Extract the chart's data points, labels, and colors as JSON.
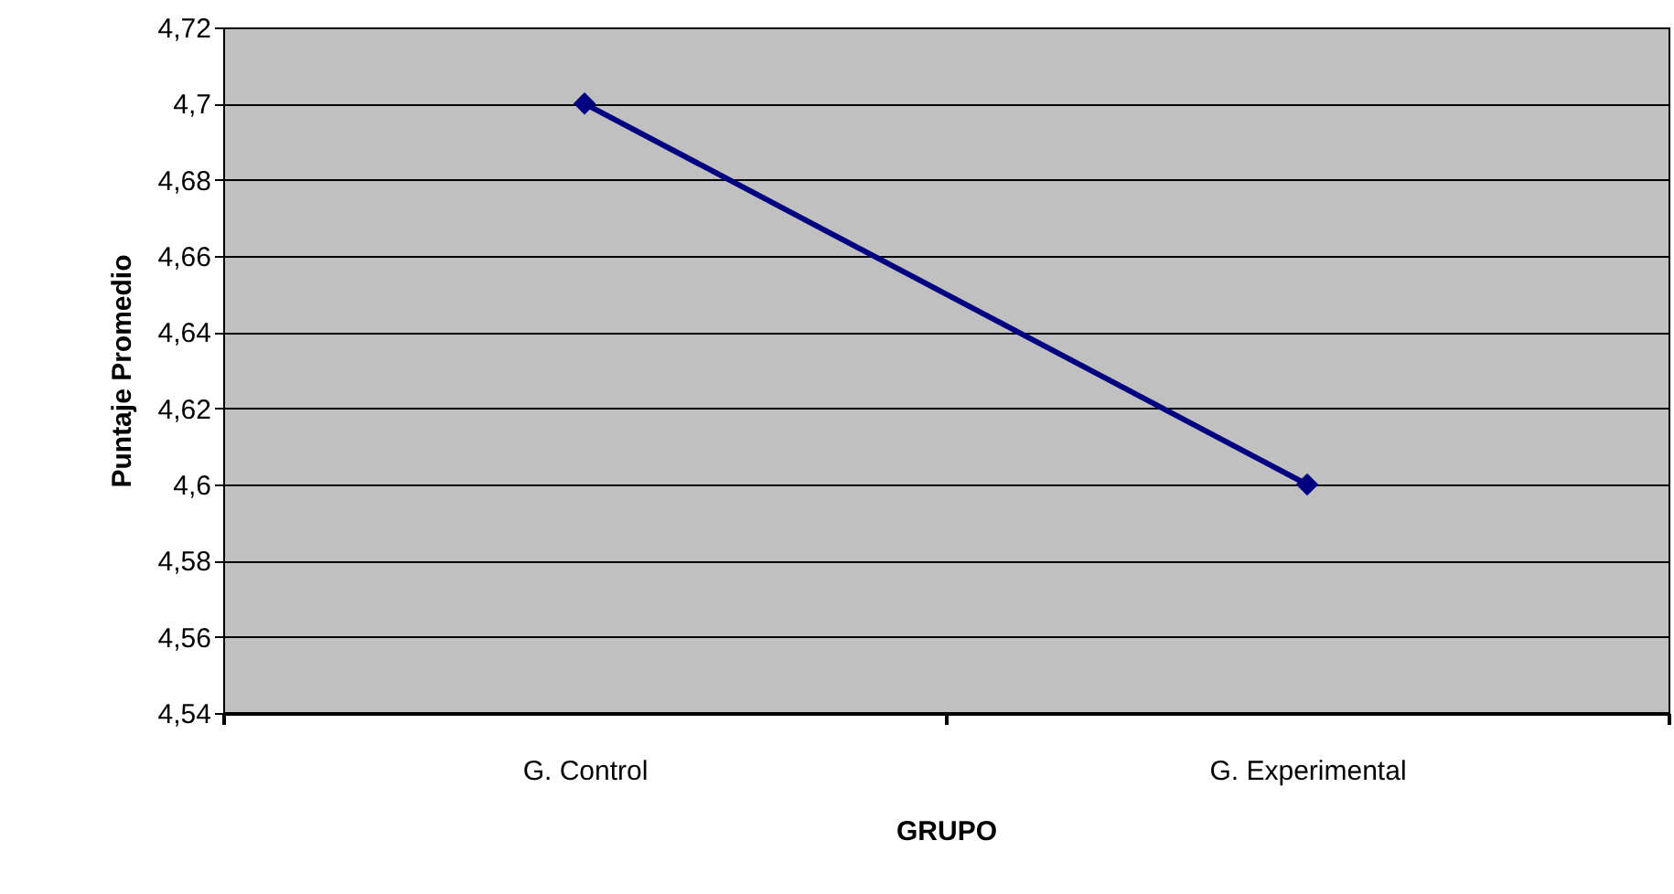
{
  "chart_data": {
    "type": "line",
    "xlabel": "GRUPO",
    "ylabel": "Puntaje Promedio",
    "categories": [
      "G. Control",
      "G. Experimental"
    ],
    "series": [
      {
        "color": "#000080",
        "values": [
          4.7,
          4.6
        ]
      }
    ],
    "ylim": [
      4.54,
      4.72
    ],
    "yticks": [
      {
        "value": 4.54,
        "label": "4,54"
      },
      {
        "value": 4.56,
        "label": "4,56"
      },
      {
        "value": 4.58,
        "label": "4,58"
      },
      {
        "value": 4.6,
        "label": "4,6"
      },
      {
        "value": 4.62,
        "label": "4,62"
      },
      {
        "value": 4.64,
        "label": "4,64"
      },
      {
        "value": 4.66,
        "label": "4,66"
      },
      {
        "value": 4.68,
        "label": "4,68"
      },
      {
        "value": 4.7,
        "label": "4,7"
      },
      {
        "value": 4.72,
        "label": "4,72"
      }
    ],
    "grid": "y",
    "marker": "diamond",
    "line_style": "solid"
  }
}
